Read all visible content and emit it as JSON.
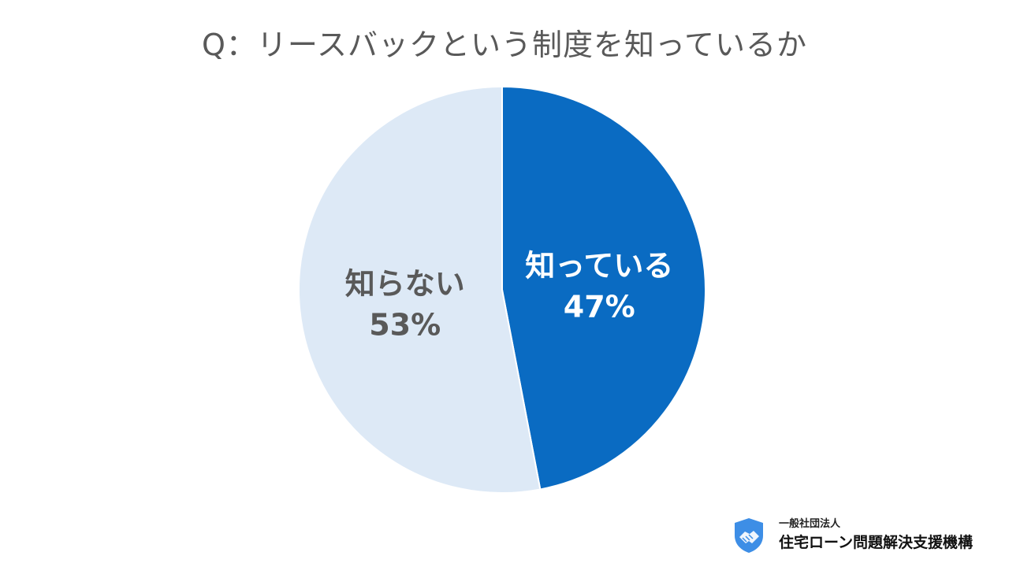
{
  "title": "Q：リースバックという制度を知っているか",
  "chart_data": {
    "type": "pie",
    "title": "Q：リースバックという制度を知っているか",
    "slices": [
      {
        "label": "知っている",
        "value": 47,
        "value_label": "47%",
        "color": "#0a6bc2",
        "text_color": "#ffffff"
      },
      {
        "label": "知らない",
        "value": 53,
        "value_label": "53%",
        "color": "#dde9f6",
        "text_color": "#595959"
      }
    ],
    "start": "12 o'clock",
    "direction": "clockwise",
    "legend": "none (labels on slices)"
  },
  "organization": {
    "type_label": "一般社団法人",
    "name": "住宅ローン問題解決支援機構",
    "logo_icon": "handshake-shield-icon",
    "logo_color": "#3d8ee6"
  }
}
